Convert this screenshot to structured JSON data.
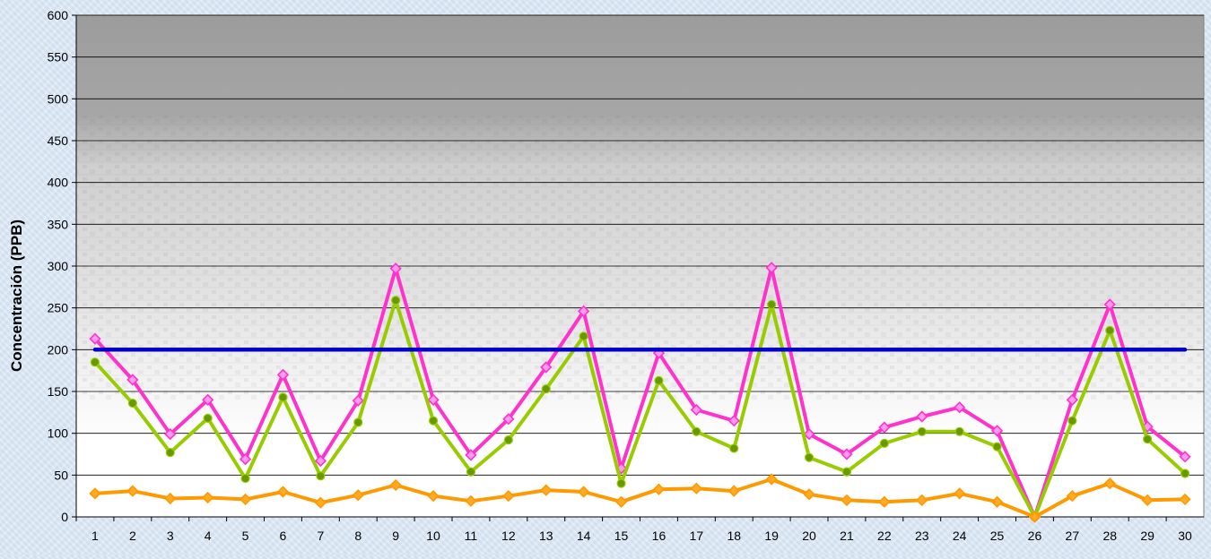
{
  "chart_data": {
    "type": "line",
    "ylabel": "Concentración  (PPB)",
    "xlabel": "",
    "ylim": [
      0,
      600
    ],
    "y_ticks": [
      0,
      50,
      100,
      150,
      200,
      250,
      300,
      350,
      400,
      450,
      500,
      550,
      600
    ],
    "categories": [
      "1",
      "2",
      "3",
      "4",
      "5",
      "6",
      "7",
      "8",
      "9",
      "10",
      "11",
      "12",
      "13",
      "14",
      "15",
      "16",
      "17",
      "18",
      "19",
      "20",
      "21",
      "22",
      "23",
      "24",
      "25",
      "26",
      "27",
      "28",
      "29",
      "30"
    ],
    "grid": true,
    "legend": "none",
    "series": [
      {
        "color": "#ff33cc",
        "marker": "diamond",
        "marker_fill": "#ff99ee",
        "values": [
          213,
          164,
          99,
          140,
          69,
          170,
          67,
          139,
          297,
          140,
          74,
          117,
          179,
          246,
          58,
          196,
          128,
          115,
          298,
          99,
          75,
          107,
          120,
          131,
          103,
          0,
          140,
          254,
          108,
          72
        ]
      },
      {
        "color": "#99cc00",
        "marker": "circle",
        "marker_fill": "#669900",
        "values": [
          185,
          136,
          77,
          118,
          46,
          143,
          49,
          113,
          259,
          115,
          54,
          92,
          153,
          216,
          40,
          163,
          102,
          82,
          254,
          71,
          54,
          88,
          102,
          102,
          84,
          0,
          115,
          223,
          93,
          52
        ]
      },
      {
        "color": "#ff9900",
        "marker": "diamond",
        "marker_fill": "#ffaa22",
        "values": [
          28,
          31,
          22,
          23,
          21,
          30,
          17,
          26,
          38,
          25,
          19,
          25,
          32,
          30,
          18,
          33,
          34,
          31,
          45,
          27,
          20,
          18,
          20,
          28,
          18,
          0,
          25,
          40,
          20,
          21
        ]
      },
      {
        "color": "#0000cc",
        "marker": "none",
        "values": [
          200,
          200,
          200,
          200,
          200,
          200,
          200,
          200,
          200,
          200,
          200,
          200,
          200,
          200,
          200,
          200,
          200,
          200,
          200,
          200,
          200,
          200,
          200,
          200,
          200,
          200,
          200,
          200,
          200,
          200
        ]
      }
    ]
  }
}
